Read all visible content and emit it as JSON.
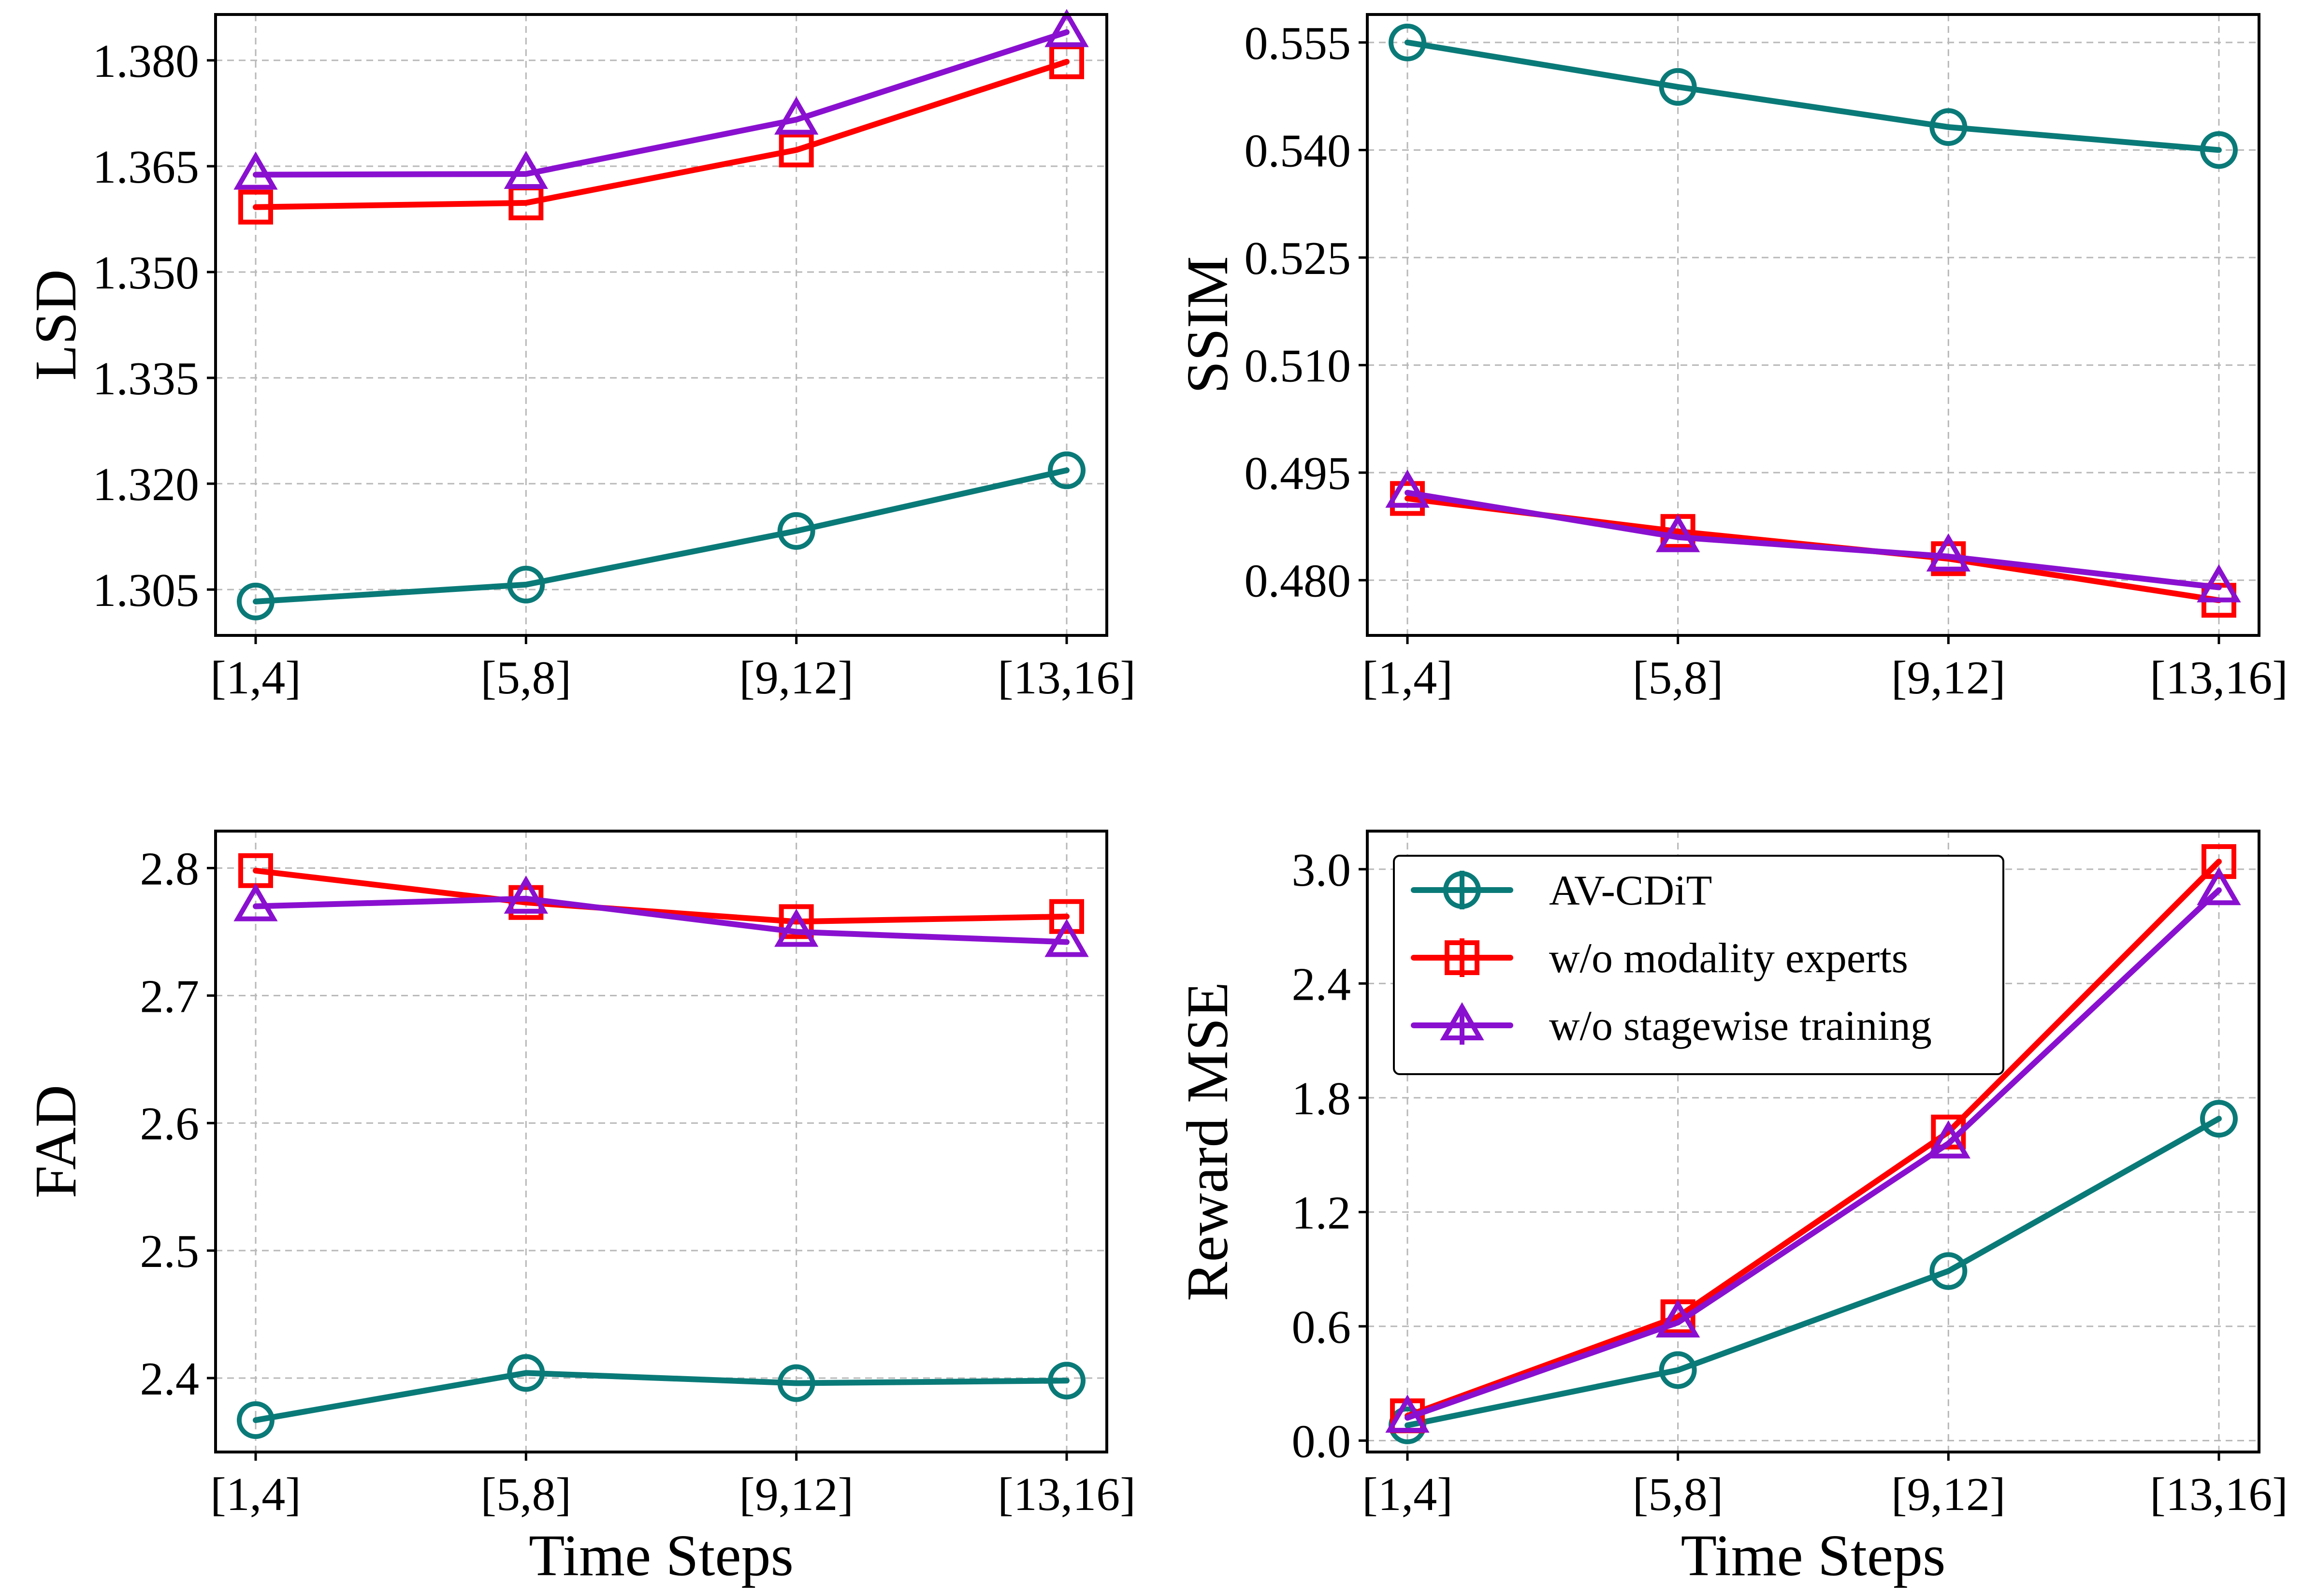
{
  "colors": {
    "av_cdit": "#0a7a78",
    "wo_modality": "#ff0000",
    "wo_stagewise": "#8a10d0"
  },
  "legend": {
    "entries": [
      "AV-CDiT",
      "w/o modality experts",
      "w/o stagewise training"
    ]
  },
  "chart_data": [
    {
      "type": "line",
      "panel": "top-left",
      "title": "",
      "xlabel": "",
      "ylabel": "LSD",
      "categories": [
        "[1,4]",
        "[5,8]",
        "[9,12]",
        "[13,16]"
      ],
      "yticks": [
        "1.305",
        "1.320",
        "1.335",
        "1.350",
        "1.365",
        "1.380"
      ],
      "ylim": [
        1.2985,
        1.3865
      ],
      "grid": true,
      "series": [
        {
          "name": "AV-CDiT",
          "marker": "circle",
          "values": [
            1.3033,
            1.3057,
            1.3133,
            1.3219
          ]
        },
        {
          "name": "w/o modality experts",
          "marker": "square",
          "values": [
            1.3592,
            1.3598,
            1.3673,
            1.3798
          ]
        },
        {
          "name": "w/o stagewise training",
          "marker": "triangle",
          "values": [
            1.3638,
            1.3639,
            1.3716,
            1.384
          ]
        }
      ]
    },
    {
      "type": "line",
      "panel": "top-right",
      "title": "",
      "xlabel": "",
      "ylabel": "SSIM",
      "categories": [
        "[1,4]",
        "[5,8]",
        "[9,12]",
        "[13,16]"
      ],
      "yticks": [
        "0.480",
        "0.495",
        "0.510",
        "0.525",
        "0.540",
        "0.555"
      ],
      "ylim": [
        0.4723,
        0.5589
      ],
      "grid": true,
      "series": [
        {
          "name": "AV-CDiT",
          "marker": "circle",
          "values": [
            0.555,
            0.5488,
            0.5432,
            0.54
          ]
        },
        {
          "name": "w/o modality experts",
          "marker": "square",
          "values": [
            0.4914,
            0.4868,
            0.483,
            0.4772
          ]
        },
        {
          "name": "w/o stagewise training",
          "marker": "triangle",
          "values": [
            0.4922,
            0.486,
            0.4833,
            0.479
          ]
        }
      ]
    },
    {
      "type": "line",
      "panel": "bottom-left",
      "title": "",
      "xlabel": "Time Steps",
      "ylabel": "FAD",
      "categories": [
        "[1,4]",
        "[5,8]",
        "[9,12]",
        "[13,16]"
      ],
      "yticks": [
        "2.4",
        "2.5",
        "2.6",
        "2.7",
        "2.8"
      ],
      "ylim": [
        2.342,
        2.829
      ],
      "grid": true,
      "series": [
        {
          "name": "AV-CDiT",
          "marker": "circle",
          "values": [
            2.367,
            2.404,
            2.396,
            2.398
          ]
        },
        {
          "name": "w/o modality experts",
          "marker": "square",
          "values": [
            2.798,
            2.773,
            2.758,
            2.762
          ]
        },
        {
          "name": "w/o stagewise training",
          "marker": "triangle",
          "values": [
            2.77,
            2.776,
            2.75,
            2.742
          ]
        }
      ]
    },
    {
      "type": "line",
      "panel": "bottom-right",
      "title": "",
      "xlabel": "Time Steps",
      "ylabel": "Reward MSE",
      "categories": [
        "[1,4]",
        "[5,8]",
        "[9,12]",
        "[13,16]"
      ],
      "yticks": [
        "0.0",
        "0.6",
        "1.2",
        "1.8",
        "2.4",
        "3.0"
      ],
      "ylim": [
        -0.06,
        3.2
      ],
      "grid": true,
      "legend_position": "top-left",
      "series": [
        {
          "name": "AV-CDiT",
          "marker": "circle",
          "values": [
            0.08,
            0.37,
            0.89,
            1.69
          ]
        },
        {
          "name": "w/o modality experts",
          "marker": "square",
          "values": [
            0.13,
            0.65,
            1.62,
            3.04
          ]
        },
        {
          "name": "w/o stagewise training",
          "marker": "triangle",
          "values": [
            0.12,
            0.62,
            1.56,
            2.89
          ]
        }
      ]
    }
  ]
}
